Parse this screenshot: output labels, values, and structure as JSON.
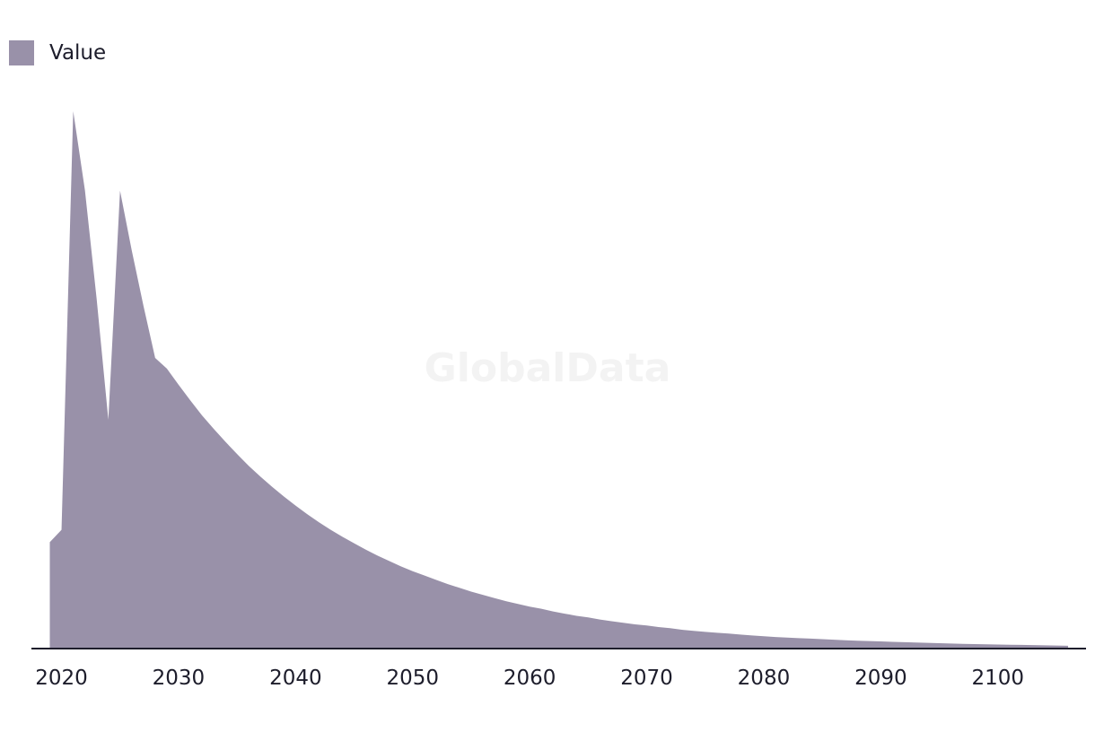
{
  "watermark": "GlobalData",
  "colors": {
    "area": "#9991a9",
    "axis": "#1d1d2b",
    "text": "#1d1d2b"
  },
  "chart_data": {
    "type": "area",
    "title": "",
    "xlabel": "",
    "ylabel": "",
    "legend": {
      "placement": "top-left",
      "entries": [
        "Value"
      ]
    },
    "grid": false,
    "xlim": [
      2019,
      2106
    ],
    "ylim": [
      0,
      100
    ],
    "xticks": [
      2020,
      2030,
      2040,
      2050,
      2060,
      2070,
      2080,
      2090,
      2100
    ],
    "series": [
      {
        "name": "Value",
        "x": [
          2019,
          2020,
          2021,
          2022,
          2023,
          2024,
          2025,
          2026,
          2027,
          2028,
          2029,
          2030,
          2031,
          2032,
          2033,
          2034,
          2035,
          2036,
          2037,
          2038,
          2039,
          2040,
          2041,
          2042,
          2043,
          2044,
          2045,
          2046,
          2047,
          2048,
          2049,
          2050,
          2051,
          2052,
          2053,
          2054,
          2055,
          2056,
          2057,
          2058,
          2059,
          2060,
          2061,
          2062,
          2063,
          2064,
          2065,
          2066,
          2067,
          2068,
          2069,
          2070,
          2071,
          2072,
          2073,
          2074,
          2075,
          2076,
          2077,
          2078,
          2079,
          2080,
          2081,
          2082,
          2083,
          2084,
          2085,
          2086,
          2087,
          2088,
          2089,
          2090,
          2091,
          2092,
          2093,
          2094,
          2095,
          2096,
          2097,
          2098,
          2099,
          2100,
          2101,
          2102,
          2103,
          2104,
          2105,
          2106
        ],
        "values": [
          19.8,
          22.1,
          100,
          85.3,
          65.1,
          42.6,
          85.2,
          74.1,
          63.8,
          54.1,
          52.1,
          49.1,
          46.2,
          43.4,
          40.9,
          38.5,
          36.2,
          34.0,
          32.0,
          30.1,
          28.3,
          26.6,
          25.0,
          23.5,
          22.1,
          20.8,
          19.6,
          18.4,
          17.3,
          16.3,
          15.3,
          14.4,
          13.6,
          12.8,
          12.0,
          11.3,
          10.6,
          10.0,
          9.4,
          8.8,
          8.3,
          7.8,
          7.4,
          6.9,
          6.5,
          6.1,
          5.8,
          5.4,
          5.1,
          4.8,
          4.5,
          4.3,
          4.0,
          3.8,
          3.5,
          3.3,
          3.1,
          2.95,
          2.8,
          2.6,
          2.45,
          2.3,
          2.15,
          2.05,
          1.95,
          1.85,
          1.75,
          1.65,
          1.55,
          1.47,
          1.4,
          1.33,
          1.26,
          1.19,
          1.12,
          1.06,
          1.0,
          0.94,
          0.88,
          0.84,
          0.8,
          0.76,
          0.72,
          0.68,
          0.64,
          0.6,
          0.56,
          0.52
        ]
      }
    ]
  }
}
